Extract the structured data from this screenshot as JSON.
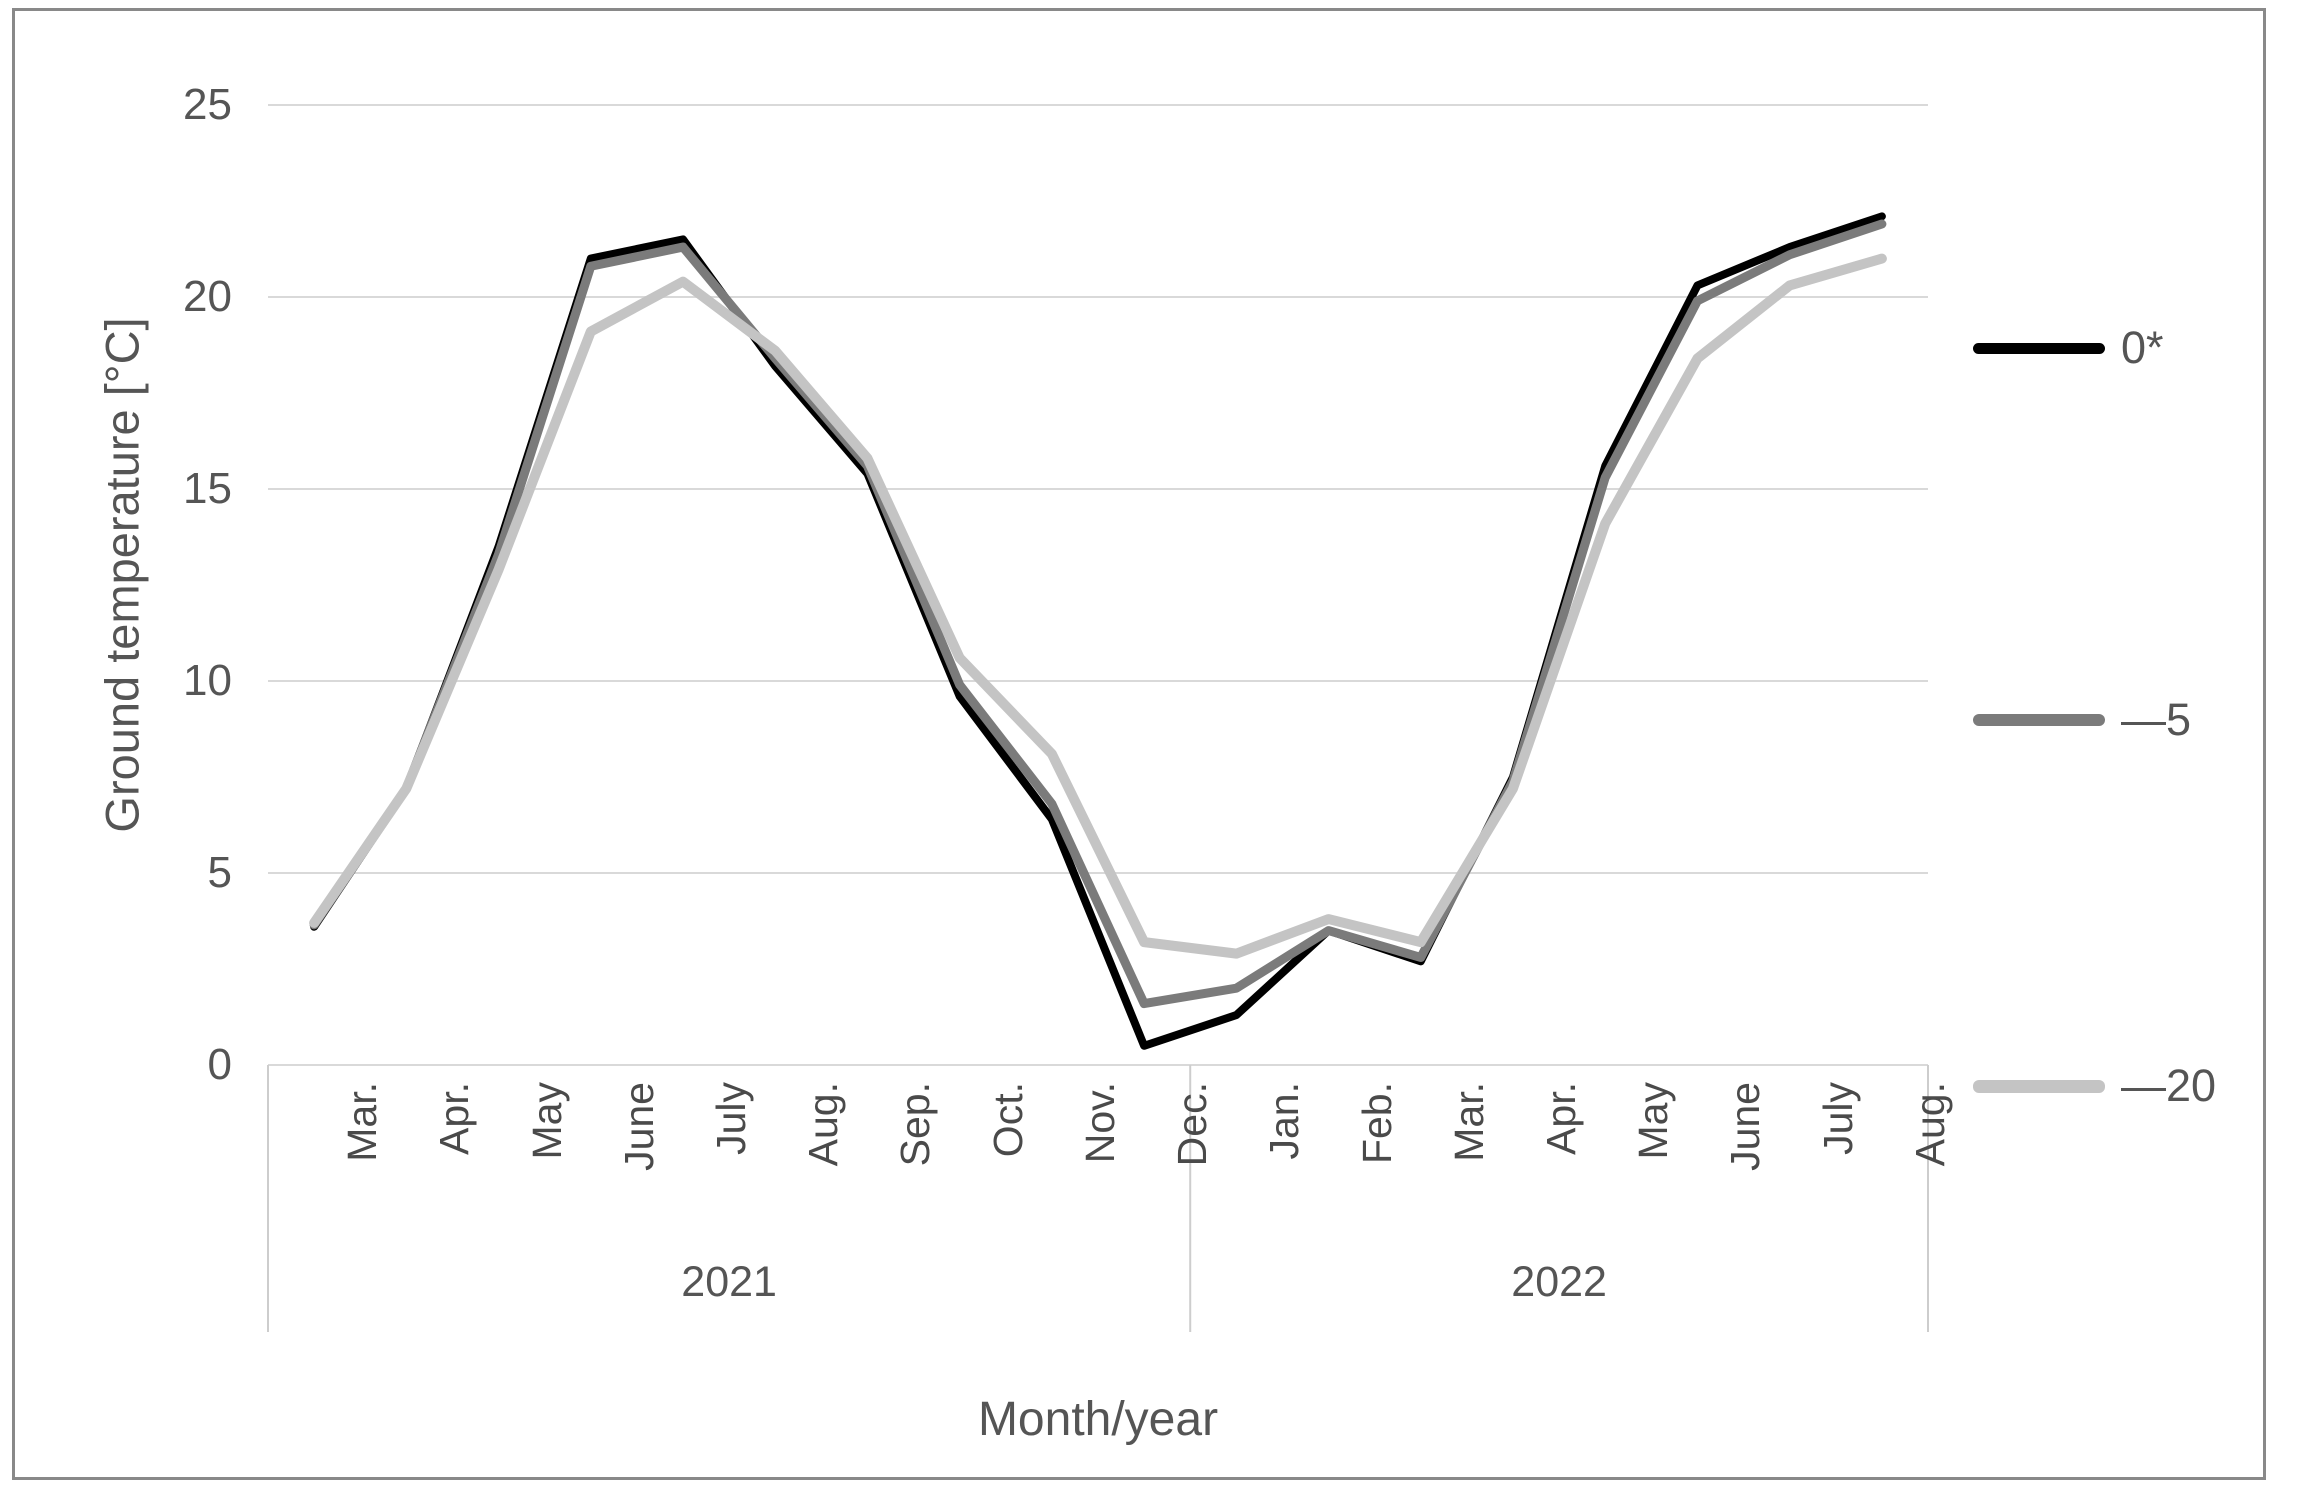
{
  "chart_data": {
    "type": "line",
    "title": "",
    "xlabel": "Month/year",
    "ylabel": "Ground temperature [°C]",
    "ylim": [
      0,
      25
    ],
    "yticks": [
      25,
      20,
      15,
      10,
      5,
      0
    ],
    "grid": true,
    "legend_position": "right",
    "categories": [
      "Mar.",
      "Apr.",
      "May",
      "June",
      "July",
      "Aug.",
      "Sep.",
      "Oct.",
      "Nov.",
      "Dec.",
      "Jan.",
      "Feb.",
      "Mar.",
      "Apr.",
      "May",
      "June",
      "July",
      "Aug."
    ],
    "year_groups": [
      {
        "label": "2021",
        "span": 10
      },
      {
        "label": "2022",
        "span": 8
      }
    ],
    "series": [
      {
        "name": "0*",
        "color": "#000000",
        "stroke_width": 8,
        "values": [
          3.6,
          7.2,
          13.5,
          21.0,
          21.5,
          18.2,
          15.4,
          9.6,
          6.4,
          0.5,
          1.3,
          3.5,
          2.7,
          7.5,
          15.6,
          20.3,
          21.3,
          22.1
        ]
      },
      {
        "name": "—5",
        "color": "#7b7b7b",
        "stroke_width": 9,
        "values": [
          3.65,
          7.2,
          13.3,
          20.8,
          21.3,
          18.4,
          15.6,
          9.9,
          6.8,
          1.6,
          2.0,
          3.5,
          2.8,
          7.4,
          15.3,
          19.9,
          21.1,
          21.9
        ]
      },
      {
        "name": "—20",
        "color": "#c4c4c4",
        "stroke_width": 10,
        "values": [
          3.7,
          7.2,
          12.9,
          19.1,
          20.4,
          18.6,
          15.8,
          10.6,
          8.1,
          3.2,
          2.9,
          3.8,
          3.2,
          7.2,
          14.1,
          18.4,
          20.3,
          21.0
        ]
      }
    ]
  },
  "colors": {
    "gridline": "#d9d9d9",
    "axis_line": "#cdcdcd",
    "frame_border": "#898989",
    "tick_text": "#555555"
  }
}
